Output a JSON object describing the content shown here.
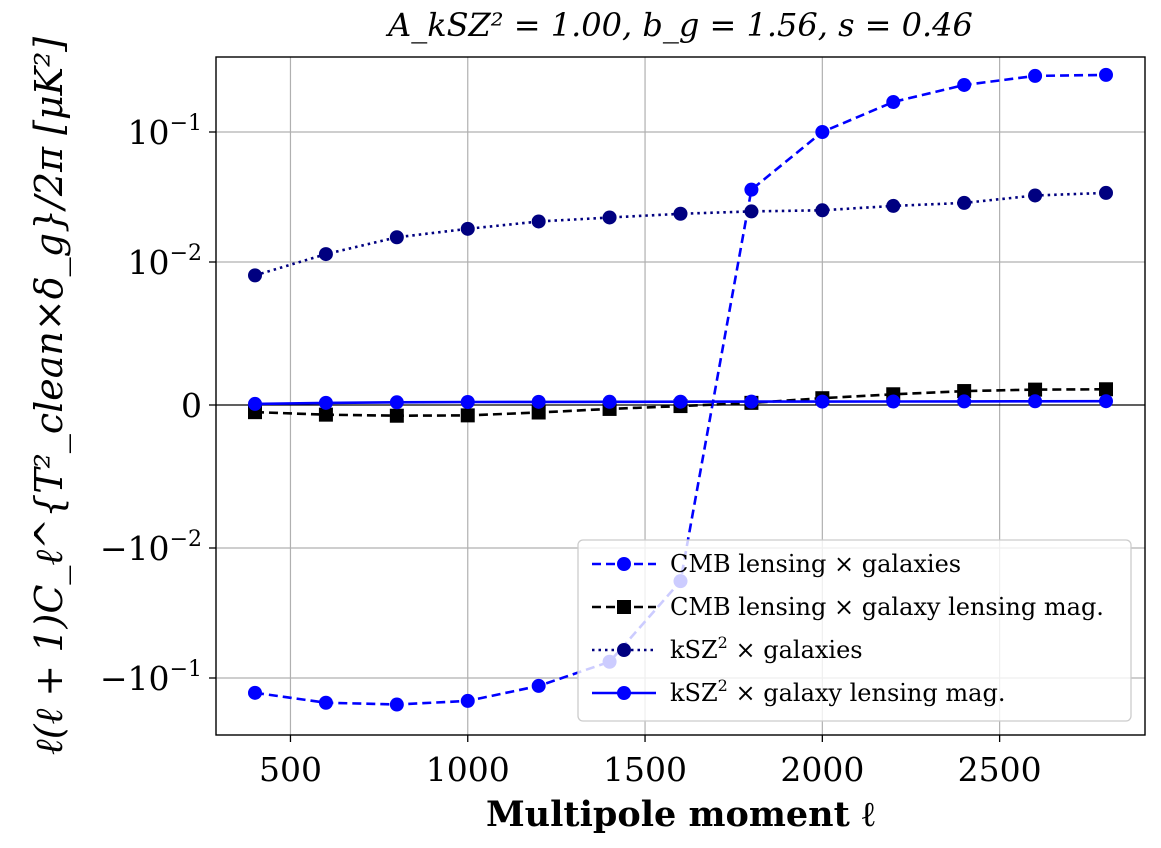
{
  "chart_data": {
    "type": "line",
    "title": "A_kSZ² = 1.00, b_g = 1.56, s = 0.46",
    "xlabel": "Multipole moment ℓ",
    "ylabel": "ℓ(ℓ + 1)C_ℓ^{T²_clean×δ_g}/2π [μK²]",
    "yscale": "symlog",
    "ylinthresh": 0.001,
    "xlim": [
      290,
      2910
    ],
    "ylim": [
      -0.22,
      0.55
    ],
    "grid": true,
    "legend_position": "lower-right",
    "x_ticks": [
      500,
      1000,
      1500,
      2000,
      2500
    ],
    "x_tick_labels": [
      "500",
      "1000",
      "1500",
      "2000",
      "2500"
    ],
    "y_ticks": [
      -0.1,
      -0.01,
      0,
      0.01,
      0.1
    ],
    "y_tick_labels": [
      {
        "base": "−10",
        "exp": "−1"
      },
      {
        "base": "−10",
        "exp": "−2"
      },
      {
        "base": "0",
        "exp": ""
      },
      {
        "base": "10",
        "exp": "−2"
      },
      {
        "base": "10",
        "exp": "−1"
      }
    ],
    "x": [
      400,
      600,
      800,
      1000,
      1200,
      1400,
      1600,
      1800,
      2000,
      2200,
      2400,
      2600,
      2800
    ],
    "series": [
      {
        "name": "CMB lensing × galaxies",
        "color": "#0000ff",
        "linestyle": "dashed",
        "marker": "circle",
        "values": [
          -0.13,
          -0.155,
          -0.16,
          -0.15,
          -0.115,
          -0.075,
          -0.018,
          0.036,
          0.1,
          0.17,
          0.23,
          0.27,
          0.275
        ]
      },
      {
        "name": "CMB lensing × galaxy lensing mag.",
        "color": "#000000",
        "linestyle": "dashed",
        "marker": "square",
        "values": [
          -0.0001,
          -0.000135,
          -0.00015,
          -0.000145,
          -0.000105,
          -5.5e-05,
          -1.5e-05,
          3e-05,
          9.5e-05,
          0.00015,
          0.000195,
          0.000215,
          0.00022
        ]
      },
      {
        "name": "kSZ² × galaxies",
        "color": "#000080",
        "linestyle": "dotted",
        "marker": "circle",
        "values": [
          0.0065,
          0.0115,
          0.0155,
          0.018,
          0.0205,
          0.022,
          0.0235,
          0.0245,
          0.025,
          0.027,
          0.0285,
          0.0325,
          0.034
        ]
      },
      {
        "name": "kSZ² × galaxy lensing mag.",
        "color": "#0000ff",
        "linestyle": "solid",
        "marker": "circle",
        "values": [
          1.5e-05,
          3e-05,
          3.8e-05,
          4.2e-05,
          4.4e-05,
          4.5e-05,
          4.6e-05,
          4.7e-05,
          4.8e-05,
          4.9e-05,
          5e-05,
          5.2e-05,
          5.3e-05
        ]
      }
    ],
    "legend_entries": [
      {
        "label": "CMB lensing × galaxies",
        "sup": ""
      },
      {
        "label": "CMB lensing × galaxy lensing mag.",
        "sup": ""
      },
      {
        "label": "kSZ",
        "sup": "2",
        "rest": " × galaxies"
      },
      {
        "label": "kSZ",
        "sup": "2",
        "rest": " × galaxy lensing mag."
      }
    ]
  }
}
